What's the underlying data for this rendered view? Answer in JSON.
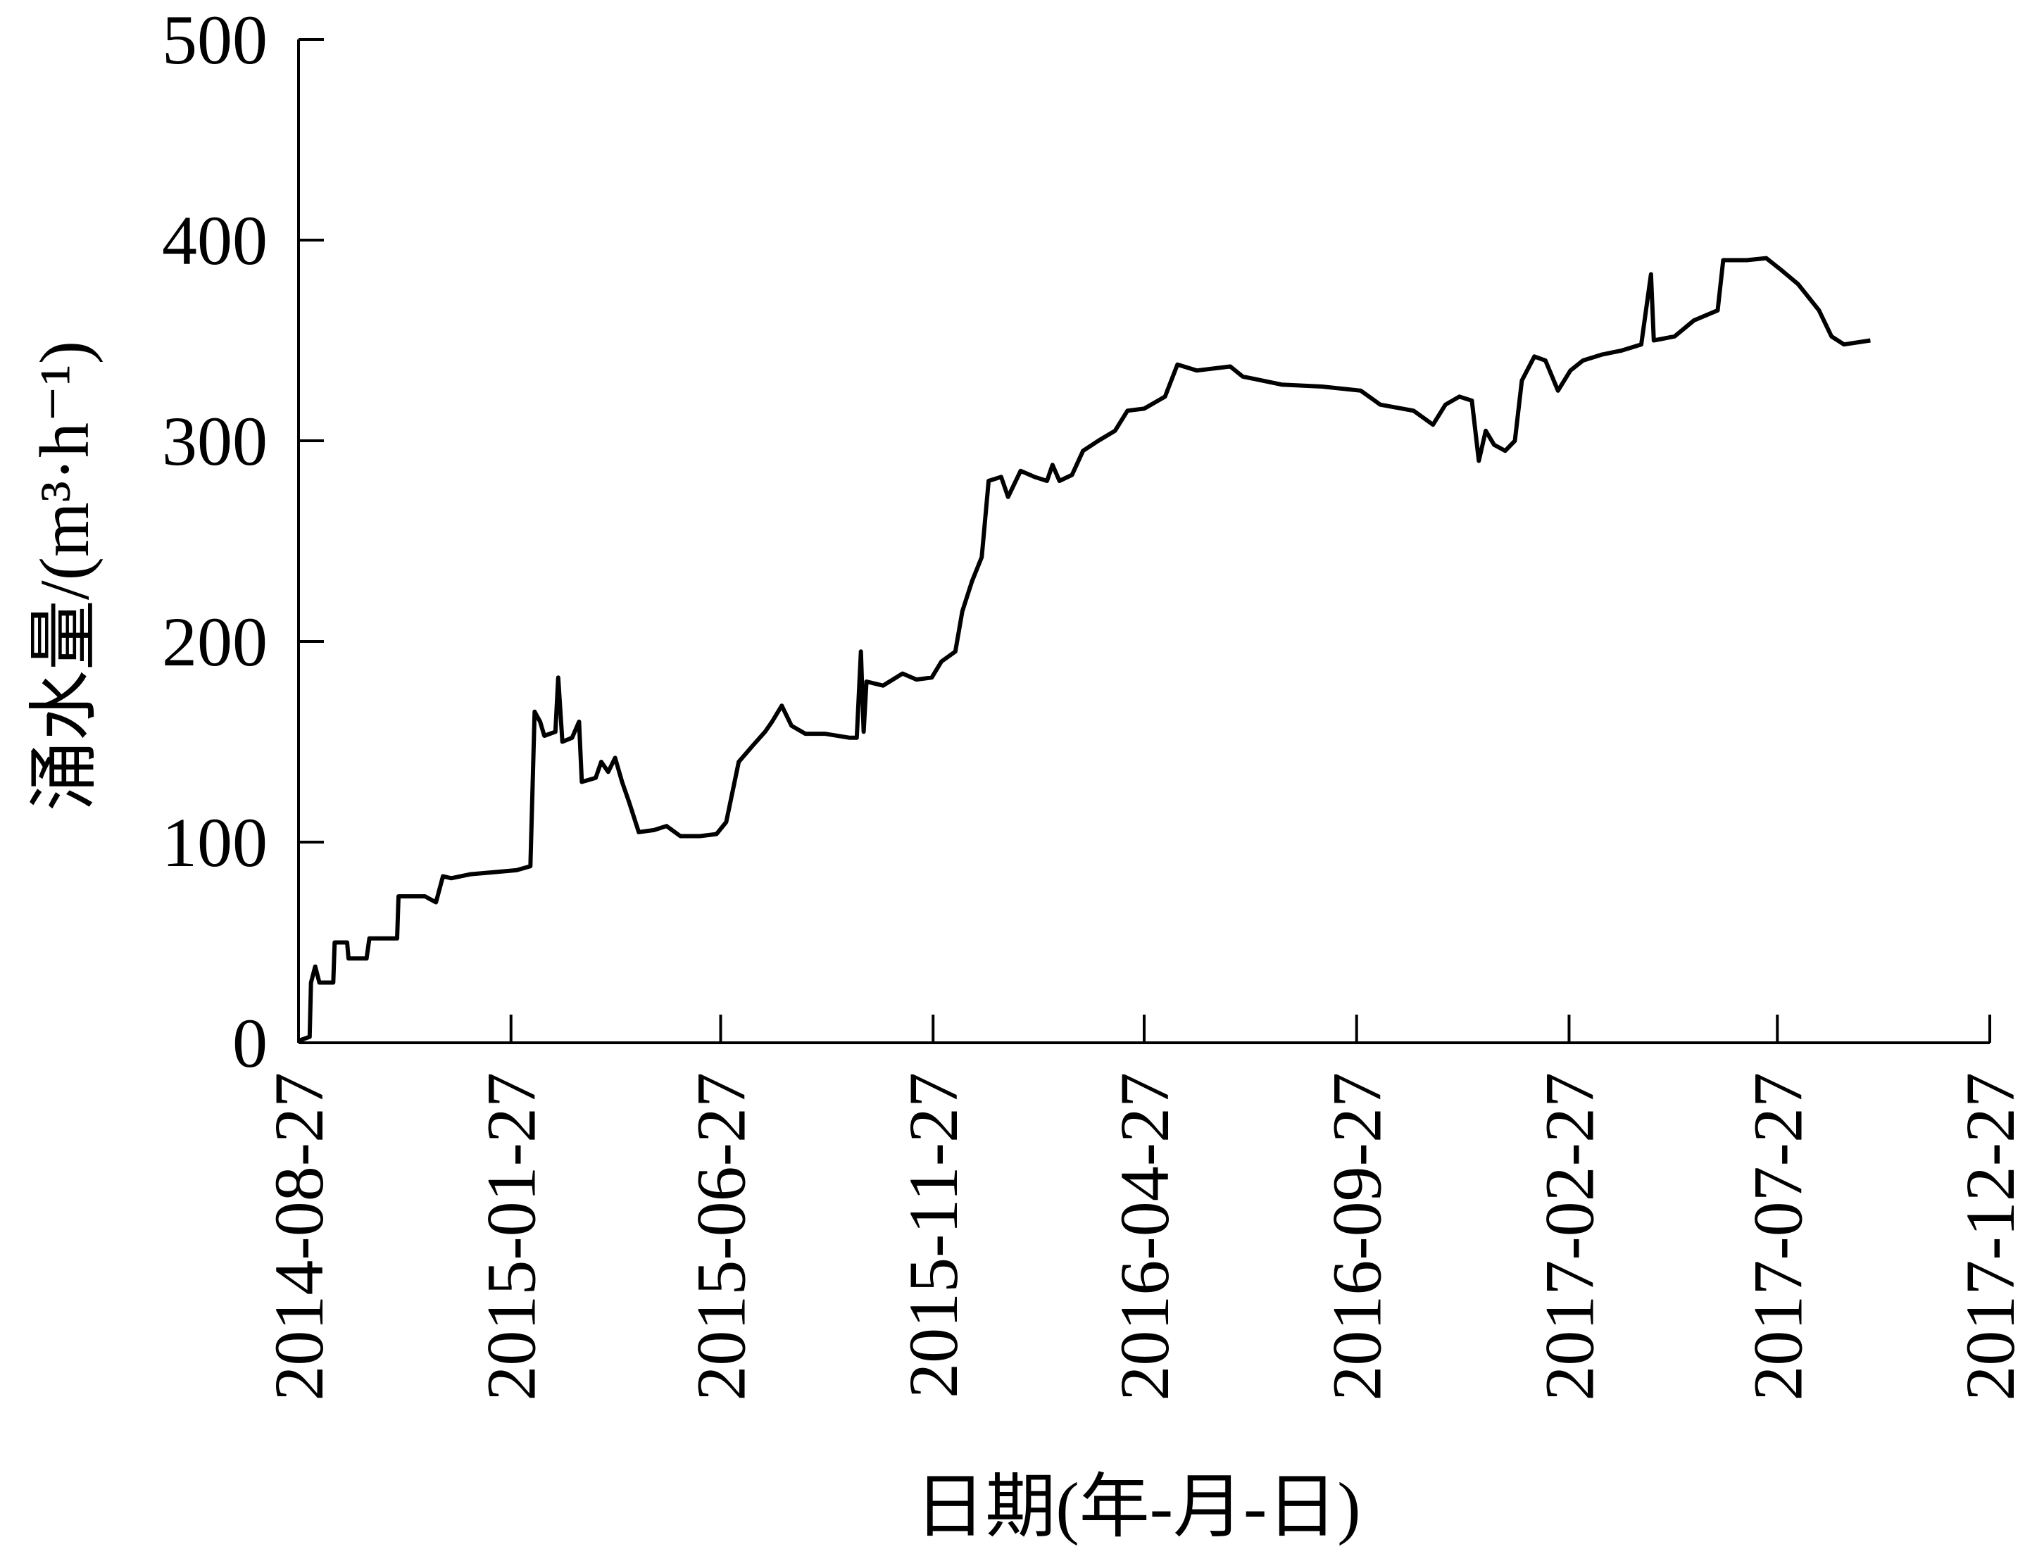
{
  "chart_data": {
    "type": "line",
    "x_label": "日期(年-月-日)",
    "y_label": "涌水量/(m³·h⁻¹)",
    "color": "#000000",
    "x": [
      "2014-08-27",
      "2014-09-04",
      "2014-09-05",
      "2014-09-08",
      "2014-09-11",
      "2014-09-21",
      "2014-09-22",
      "2014-10-01",
      "2014-10-02",
      "2014-10-15",
      "2014-10-17",
      "2014-11-06",
      "2014-11-07",
      "2014-11-26",
      "2014-12-04",
      "2014-12-09",
      "2014-12-15",
      "2014-12-29",
      "2015-01-31",
      "2015-02-10",
      "2015-02-13",
      "2015-02-17",
      "2015-02-20",
      "2015-02-28",
      "2015-03-02",
      "2015-03-05",
      "2015-03-12",
      "2015-03-17",
      "2015-03-19",
      "2015-03-29",
      "2015-04-02",
      "2015-04-07",
      "2015-04-12",
      "2015-04-17",
      "2015-04-22",
      "2015-04-29",
      "2015-05-10",
      "2015-05-19",
      "2015-05-29",
      "2015-06-12",
      "2015-06-24",
      "2015-07-01",
      "2015-07-10",
      "2015-07-20",
      "2015-07-29",
      "2015-08-03",
      "2015-08-10",
      "2015-08-17",
      "2015-08-27",
      "2015-09-10",
      "2015-09-28",
      "2015-10-03",
      "2015-10-06",
      "2015-10-08",
      "2015-10-10",
      "2015-10-22",
      "2015-11-05",
      "2015-11-15",
      "2015-11-26",
      "2015-12-03",
      "2015-12-13",
      "2015-12-18",
      "2015-12-25",
      "2016-01-01",
      "2016-01-06",
      "2016-01-15",
      "2016-01-20",
      "2016-01-29",
      "2016-02-08",
      "2016-02-17",
      "2016-02-21",
      "2016-02-26",
      "2016-03-06",
      "2016-03-14",
      "2016-03-25",
      "2016-04-06",
      "2016-04-15",
      "2016-04-27",
      "2016-05-12",
      "2016-05-21",
      "2016-06-04",
      "2016-06-28",
      "2016-07-07",
      "2016-08-04",
      "2016-09-02",
      "2016-09-30",
      "2016-10-14",
      "2016-11-07",
      "2016-11-21",
      "2016-11-30",
      "2016-12-10",
      "2016-12-19",
      "2016-12-24",
      "2016-12-29",
      "2017-01-04",
      "2017-01-12",
      "2017-01-19",
      "2017-01-24",
      "2017-02-02",
      "2017-02-10",
      "2017-02-19",
      "2017-02-28",
      "2017-03-09",
      "2017-03-23",
      "2017-04-06",
      "2017-04-20",
      "2017-04-27",
      "2017-04-29",
      "2017-05-14",
      "2017-05-28",
      "2017-06-14",
      "2017-06-18",
      "2017-07-05",
      "2017-07-19",
      "2017-07-30",
      "2017-08-11",
      "2017-08-26",
      "2017-09-04",
      "2017-09-13",
      "2017-10-02"
    ],
    "values": [
      1,
      3,
      30,
      38,
      30,
      30,
      50,
      50,
      42,
      42,
      52,
      52,
      73,
      73,
      70,
      83,
      82,
      84,
      86,
      88,
      165,
      160,
      153,
      155,
      182,
      150,
      152,
      160,
      130,
      132,
      140,
      135,
      142,
      130,
      120,
      105,
      106,
      108,
      103,
      103,
      104,
      110,
      140,
      148,
      155,
      160,
      168,
      158,
      154,
      154,
      152,
      152,
      195,
      155,
      180,
      178,
      184,
      181,
      182,
      190,
      195,
      215,
      230,
      242,
      280,
      282,
      272,
      285,
      282,
      280,
      288,
      280,
      283,
      295,
      300,
      305,
      315,
      316,
      322,
      338,
      335,
      337,
      332,
      328,
      327,
      325,
      318,
      315,
      308,
      318,
      322,
      320,
      290,
      305,
      298,
      295,
      300,
      330,
      342,
      340,
      325,
      335,
      340,
      343,
      345,
      348,
      383,
      350,
      352,
      360,
      365,
      390,
      390,
      391,
      385,
      378,
      365,
      352,
      348,
      350
    ],
    "xlim": [
      "2014-08-27",
      "2017-12-27"
    ],
    "xticks": [
      "2014-08-27",
      "2015-01-27",
      "2015-06-27",
      "2015-11-27",
      "2016-04-27",
      "2016-09-27",
      "2017-02-27",
      "2017-07-27",
      "2017-12-27"
    ],
    "ylim": [
      0,
      500
    ],
    "yticks": [
      0,
      100,
      200,
      300,
      400,
      500
    ]
  }
}
